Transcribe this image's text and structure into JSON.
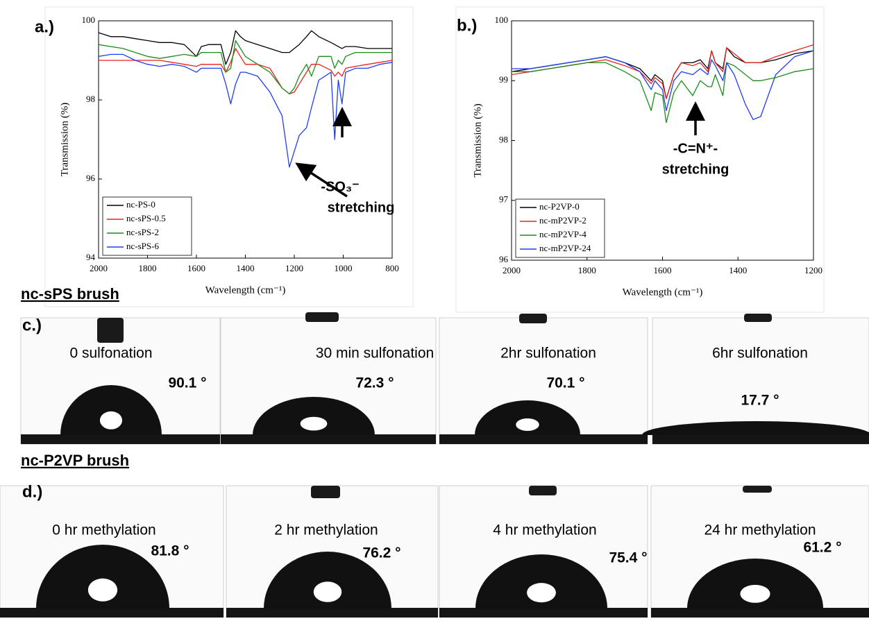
{
  "chart_data": [
    {
      "type": "line",
      "panel_label": "a.)",
      "x_label": "Wavelength (cm⁻¹)",
      "y_label": "Transmission (%)",
      "xlim": [
        2000,
        800
      ],
      "xticks": [
        2000,
        1800,
        1600,
        1400,
        1200,
        1000,
        800
      ],
      "ylim": [
        94,
        100
      ],
      "yticks": [
        94,
        96,
        98,
        100
      ],
      "legend": "lower left",
      "annotations": [
        "-SO₃⁻",
        "stretching"
      ],
      "x": [
        2000,
        1950,
        1900,
        1850,
        1800,
        1750,
        1700,
        1650,
        1600,
        1580,
        1550,
        1500,
        1480,
        1460,
        1440,
        1420,
        1400,
        1350,
        1300,
        1250,
        1220,
        1200,
        1180,
        1150,
        1130,
        1100,
        1050,
        1035,
        1020,
        1005,
        990,
        950,
        900,
        850,
        800
      ],
      "series": [
        {
          "name": "nc-PS-0",
          "color": "#000000",
          "values": [
            99.7,
            99.6,
            99.6,
            99.55,
            99.5,
            99.45,
            99.45,
            99.4,
            99.1,
            99.35,
            99.4,
            99.4,
            98.9,
            99.2,
            99.75,
            99.6,
            99.5,
            99.4,
            99.3,
            99.2,
            99.2,
            99.3,
            99.4,
            99.6,
            99.75,
            99.6,
            99.45,
            99.4,
            99.35,
            99.3,
            99.35,
            99.35,
            99.3,
            99.3,
            99.3
          ]
        },
        {
          "name": "nc-sPS-0.5",
          "color": "#e8211e",
          "values": [
            99.0,
            99.0,
            99.0,
            99.0,
            99.0,
            99.0,
            98.95,
            98.9,
            98.85,
            98.9,
            98.9,
            98.9,
            98.7,
            98.95,
            99.3,
            99.1,
            98.9,
            98.9,
            98.8,
            98.3,
            98.15,
            98.2,
            98.4,
            98.7,
            98.9,
            98.9,
            98.75,
            98.6,
            98.7,
            98.6,
            98.8,
            98.85,
            98.9,
            98.95,
            99.0
          ]
        },
        {
          "name": "nc-sPS-2",
          "color": "#1a8c1a",
          "values": [
            99.4,
            99.35,
            99.3,
            99.2,
            99.1,
            99.05,
            99.1,
            99.15,
            99.1,
            99.2,
            99.2,
            99.2,
            98.7,
            98.8,
            99.5,
            99.3,
            99.1,
            98.9,
            98.7,
            98.3,
            98.15,
            98.3,
            98.6,
            98.9,
            98.6,
            99.1,
            99.1,
            98.8,
            99.0,
            98.9,
            99.1,
            99.2,
            99.2,
            99.2,
            99.2
          ]
        },
        {
          "name": "nc-sPS-6",
          "color": "#1f3df0",
          "values": [
            99.1,
            99.15,
            99.15,
            99.0,
            98.9,
            98.85,
            98.9,
            98.85,
            98.7,
            98.8,
            98.8,
            98.8,
            98.4,
            97.9,
            98.4,
            98.7,
            98.7,
            98.6,
            98.2,
            97.6,
            96.3,
            96.7,
            97.1,
            97.3,
            97.8,
            98.5,
            98.7,
            97.0,
            98.5,
            97.9,
            98.7,
            98.8,
            98.8,
            98.9,
            98.95
          ]
        }
      ]
    },
    {
      "type": "line",
      "panel_label": "b.)",
      "x_label": "Wavelength (cm⁻¹)",
      "y_label": "Transmission (%)",
      "xlim": [
        2000,
        1200
      ],
      "xticks": [
        2000,
        1800,
        1600,
        1400,
        1200
      ],
      "ylim": [
        96,
        100
      ],
      "yticks": [
        96,
        97,
        98,
        99,
        100
      ],
      "legend": "lower left",
      "annotations": [
        "-C=N⁺-",
        "stretching"
      ],
      "x": [
        2000,
        1950,
        1900,
        1850,
        1800,
        1750,
        1700,
        1660,
        1630,
        1620,
        1600,
        1590,
        1570,
        1550,
        1520,
        1500,
        1480,
        1470,
        1460,
        1440,
        1430,
        1410,
        1380,
        1360,
        1340,
        1300,
        1250,
        1200
      ],
      "series": [
        {
          "name": "nc-P2VP-0",
          "color": "#000000",
          "values": [
            99.15,
            99.2,
            99.25,
            99.3,
            99.35,
            99.4,
            99.3,
            99.2,
            99.0,
            99.1,
            99.0,
            98.7,
            99.1,
            99.3,
            99.3,
            99.35,
            99.2,
            99.5,
            99.3,
            99.2,
            99.55,
            99.4,
            99.3,
            99.3,
            99.3,
            99.35,
            99.45,
            99.5
          ]
        },
        {
          "name": "nc-mP2VP-2",
          "color": "#e8211e",
          "values": [
            99.1,
            99.15,
            99.2,
            99.25,
            99.3,
            99.35,
            99.25,
            99.15,
            98.95,
            99.05,
            98.95,
            98.7,
            99.1,
            99.3,
            99.25,
            99.3,
            99.15,
            99.5,
            99.3,
            99.15,
            99.55,
            99.45,
            99.3,
            99.3,
            99.3,
            99.4,
            99.5,
            99.6
          ]
        },
        {
          "name": "nc-mP2VP-4",
          "color": "#1a8c1a",
          "values": [
            99.15,
            99.15,
            99.2,
            99.25,
            99.3,
            99.3,
            99.15,
            99.0,
            98.5,
            98.8,
            98.75,
            98.3,
            98.8,
            99.0,
            98.75,
            99.0,
            98.9,
            98.9,
            99.1,
            98.75,
            99.3,
            99.25,
            99.1,
            99.0,
            99.0,
            99.05,
            99.15,
            99.2
          ]
        },
        {
          "name": "nc-mP2VP-24",
          "color": "#1f3df0",
          "values": [
            99.2,
            99.2,
            99.25,
            99.3,
            99.35,
            99.4,
            99.3,
            99.15,
            98.85,
            99.0,
            98.85,
            98.5,
            99.0,
            99.15,
            99.1,
            99.2,
            99.1,
            99.35,
            99.25,
            99.0,
            99.3,
            99.1,
            98.6,
            98.35,
            98.4,
            99.1,
            99.4,
            99.5
          ]
        }
      ]
    }
  ],
  "sections": [
    {
      "heading": "nc-sPS brush",
      "panel_label": "c.)",
      "photos": [
        {
          "caption": "0 sulfonation",
          "angle": "90.1 °"
        },
        {
          "caption": "30 min sulfonation",
          "angle": "72.3 °"
        },
        {
          "caption": "2hr sulfonation",
          "angle": "70.1 °"
        },
        {
          "caption": "6hr sulfonation",
          "angle": "17.7 °"
        }
      ]
    },
    {
      "heading": "nc-P2VP brush",
      "panel_label": "d.)",
      "photos": [
        {
          "caption": "0 hr methylation",
          "angle": "81.8 °"
        },
        {
          "caption": "2 hr methylation",
          "angle": "76.2 °"
        },
        {
          "caption": "4 hr methylation",
          "angle": "75.4 °"
        },
        {
          "caption": "24 hr methylation",
          "angle": "61.2 °"
        }
      ]
    }
  ]
}
